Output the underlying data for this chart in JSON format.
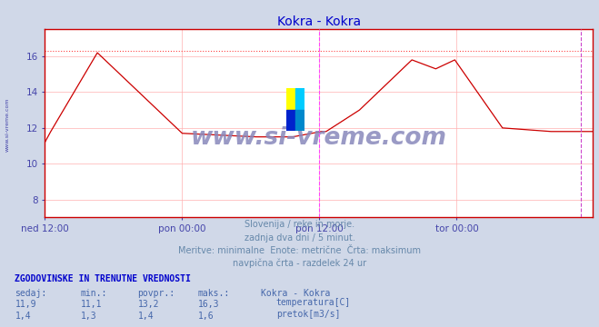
{
  "title": "Kokra - Kokra",
  "title_color": "#0000cc",
  "bg_color": "#d0d8e8",
  "plot_bg_color": "#ffffff",
  "grid_color": "#ffb0b0",
  "xlim": [
    0,
    575
  ],
  "ylim": [
    7.0,
    17.5
  ],
  "yticks": [
    8,
    10,
    12,
    14,
    16
  ],
  "max_line_y": 16.3,
  "max_line_color": "#ff4444",
  "xtick_labels": [
    "ned 12:00",
    "pon 00:00",
    "pon 12:00",
    "tor 00:00"
  ],
  "xtick_positions": [
    0,
    144,
    288,
    432
  ],
  "vline_pos": 288,
  "vline_color": "#ff44ff",
  "right_vline_pos": 562,
  "right_vline_color": "#cc44cc",
  "temp_color": "#cc0000",
  "flow_color": "#008800",
  "flow_dot_color": "#00bb00",
  "watermark": "www.si-vreme.com",
  "watermark_color": "#8888bb",
  "subtitle_lines": [
    "Slovenija / reke in morje.",
    "zadnja dva dni / 5 minut.",
    "Meritve: minimalne  Enote: metrične  Črta: maksimum",
    "navpična črta - razdelek 24 ur"
  ],
  "subtitle_color": "#6688aa",
  "table_header": "ZGODOVINSKE IN TRENUTNE VREDNOSTI",
  "col_headers": [
    "sedaj:",
    "min.:",
    "povpr.:",
    "maks.:",
    "Kokra - Kokra"
  ],
  "row1_vals": [
    "11,9",
    "11,1",
    "13,2",
    "16,3"
  ],
  "row2_vals": [
    "1,4",
    "1,3",
    "1,4",
    "1,6"
  ],
  "legend_labels": [
    "temperatura[C]",
    "pretok[m3/s]"
  ],
  "legend_colors": [
    "#cc0000",
    "#008800"
  ],
  "label_color": "#4444aa",
  "table_header_color": "#0000cc",
  "col_header_color": "#4466aa",
  "data_color": "#4466aa",
  "side_label": "www.si-vreme.com",
  "spine_color": "#cc0000",
  "logo_colors": [
    "#ffff00",
    "#00ccff",
    "#0022cc",
    "#0088cc"
  ]
}
